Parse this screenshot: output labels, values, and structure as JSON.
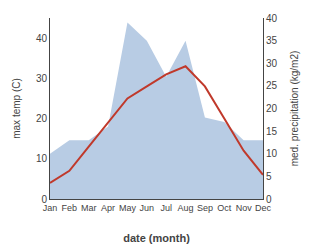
{
  "chart_data": {
    "type": "line",
    "xlabel": "date (month)",
    "ylabel": "max temp (C)",
    "y2label": "med. precipitation (kg/m2)",
    "categories": [
      "Jan",
      "Feb",
      "Mar",
      "Apr",
      "May",
      "Jun",
      "Jul",
      "Aug",
      "Sep",
      "Oct",
      "Nov",
      "Dec"
    ],
    "series": [
      {
        "type": "area",
        "axis": "y2",
        "color": "#b8cce4",
        "values": [
          10,
          13,
          13,
          16,
          39,
          35,
          27,
          35,
          18,
          17,
          13,
          13
        ]
      },
      {
        "type": "line",
        "color": "#c0392b",
        "values": [
          4,
          7,
          13,
          19,
          25,
          28,
          31,
          33,
          28,
          20,
          12,
          6
        ]
      }
    ],
    "ylim": [
      0,
      45
    ],
    "yticks": [
      0,
      10,
      20,
      30,
      40
    ],
    "y2lim": [
      0,
      40
    ],
    "y2ticks": [
      0,
      5,
      10,
      15,
      20,
      25,
      30,
      35,
      40
    ],
    "grid": false
  }
}
